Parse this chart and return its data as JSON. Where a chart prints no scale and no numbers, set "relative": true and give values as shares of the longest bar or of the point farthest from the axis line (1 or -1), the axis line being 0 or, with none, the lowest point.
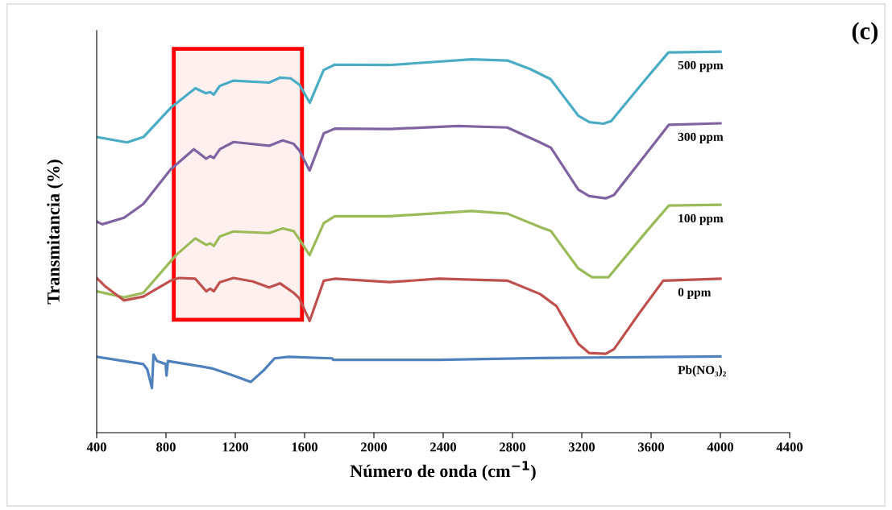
{
  "chart_data": {
    "type": "line",
    "relative": true,
    "xlabel": "Número de onda (cm$^{−1}$)",
    "ylabel": "Transmitancia (%)",
    "annotations": [
      "(c)"
    ],
    "xlim": [
      400,
      4400
    ],
    "xticks": [
      400,
      800,
      1200,
      1600,
      2000,
      2400,
      2800,
      3200,
      3600,
      4000,
      4400
    ],
    "tick_labels": "x",
    "grid": false,
    "legend": false,
    "marker": "none",
    "line_style": "solid",
    "bands": [
      {
        "axis": "x",
        "from": 845,
        "to": 1585,
        "color": "#ff0000"
      }
    ],
    "series": [
      {
        "name": "500 ppm",
        "color": "#4bacc6",
        "x": [
          400,
          575,
          670,
          830,
          970,
          1030,
          1055,
          1075,
          1110,
          1190,
          1395,
          1460,
          1520,
          1570,
          1630,
          1710,
          1775,
          2090,
          2565,
          2770,
          2900,
          3020,
          3180,
          3245,
          3325,
          3370,
          3575,
          3700,
          4000
        ],
        "values": [
          0.776,
          0.762,
          0.776,
          0.854,
          0.904,
          0.891,
          0.894,
          0.887,
          0.91,
          0.924,
          0.919,
          0.932,
          0.93,
          0.913,
          0.866,
          0.952,
          0.966,
          0.965,
          0.98,
          0.977,
          0.955,
          0.928,
          0.832,
          0.815,
          0.811,
          0.818,
          0.931,
          0.998,
          1.0
        ]
      },
      {
        "name": "300 ppm",
        "color": "#8064a2",
        "x": [
          400,
          432,
          558,
          669,
          827,
          961,
          1032,
          1055,
          1076,
          1111,
          1190,
          1395,
          1474,
          1537,
          1569,
          1629,
          1711,
          1774,
          2090,
          2485,
          2770,
          2959,
          3022,
          3180,
          3243,
          3338,
          3386,
          3575,
          3702,
          4000
        ],
        "values": [
          0.554,
          0.547,
          0.564,
          0.6,
          0.691,
          0.744,
          0.719,
          0.726,
          0.721,
          0.744,
          0.763,
          0.753,
          0.767,
          0.758,
          0.741,
          0.688,
          0.786,
          0.798,
          0.797,
          0.805,
          0.801,
          0.762,
          0.748,
          0.638,
          0.621,
          0.615,
          0.624,
          0.734,
          0.808,
          0.812
        ]
      },
      {
        "name": "100 ppm",
        "color": "#9bbb59",
        "x": [
          400,
          558,
          669,
          858,
          969,
          1032,
          1055,
          1076,
          1111,
          1190,
          1395,
          1474,
          1537,
          1569,
          1629,
          1711,
          1774,
          2090,
          2564,
          2770,
          2959,
          3022,
          3180,
          3259,
          3354,
          3575,
          3702,
          4000
        ],
        "values": [
          0.371,
          0.355,
          0.367,
          0.466,
          0.51,
          0.493,
          0.497,
          0.49,
          0.515,
          0.528,
          0.524,
          0.536,
          0.529,
          0.508,
          0.466,
          0.55,
          0.568,
          0.568,
          0.582,
          0.575,
          0.54,
          0.529,
          0.431,
          0.408,
          0.408,
          0.529,
          0.596,
          0.598
        ]
      },
      {
        "name": "0 ppm",
        "color": "#c0504d",
        "x": [
          400,
          447,
          558,
          669,
          827,
          874,
          969,
          1032,
          1055,
          1076,
          1111,
          1190,
          1300,
          1395,
          1458,
          1537,
          1569,
          1629,
          1711,
          1774,
          2090,
          2375,
          2770,
          2959,
          3054,
          3180,
          3243,
          3338,
          3386,
          3528,
          3670,
          4000
        ],
        "values": [
          0.406,
          0.385,
          0.347,
          0.357,
          0.399,
          0.406,
          0.404,
          0.371,
          0.378,
          0.371,
          0.395,
          0.406,
          0.397,
          0.381,
          0.392,
          0.367,
          0.353,
          0.293,
          0.399,
          0.404,
          0.395,
          0.404,
          0.399,
          0.364,
          0.332,
          0.233,
          0.209,
          0.207,
          0.219,
          0.311,
          0.399,
          0.404
        ]
      },
      {
        "name": "Pb(NO₃)₂",
        "color": "#4f81bd",
        "x": [
          400,
          669,
          692,
          719,
          728,
          747,
          798,
          803,
          811,
          1063,
          1174,
          1289,
          1363,
          1427,
          1506,
          1759,
          1766,
          2375,
          2959,
          4000
        ],
        "values": [
          0.199,
          0.18,
          0.166,
          0.117,
          0.205,
          0.188,
          0.18,
          0.15,
          0.188,
          0.169,
          0.152,
          0.133,
          0.163,
          0.195,
          0.199,
          0.195,
          0.191,
          0.191,
          0.196,
          0.2
        ]
      }
    ]
  }
}
